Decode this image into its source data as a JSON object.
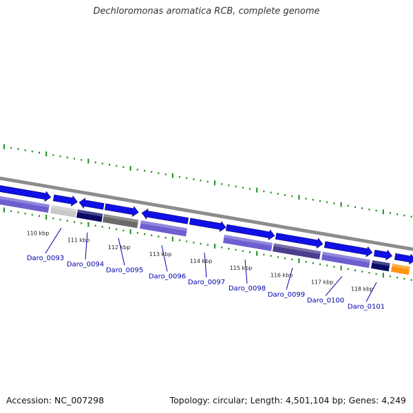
{
  "title": "Dechloromonas aromatica RCB, complete genome",
  "accession_label": "Accession: NC_007298",
  "summary_label": "Topology: circular; Length: 4,501,104 bp; Genes: 4,249",
  "colors": {
    "backbone": "#8c8c8c",
    "cds": "#1010e6",
    "cds_light": "#6e5fd0",
    "cds_dark": "#0a0a66",
    "cds_slate": "#4a3f8c",
    "gray_light": "#c8c8c8",
    "gray_dark": "#6a6a6a",
    "orange": "#ff9410",
    "tick": "#1a8a1a",
    "label": "#0000aa",
    "kbp": "#222222"
  },
  "kbp_markers": [
    "110 kbp",
    "111 kbp",
    "112 kbp",
    "113 kbp",
    "114 kbp",
    "115 kbp",
    "116 kbp",
    "117 kbp",
    "118 kbp"
  ],
  "gene_labels": [
    "Daro_0093",
    "Daro_0094",
    "Daro_0095",
    "Daro_0096",
    "Daro_0097",
    "Daro_0098",
    "Daro_0099",
    "Daro_0100",
    "Daro_0101"
  ]
}
